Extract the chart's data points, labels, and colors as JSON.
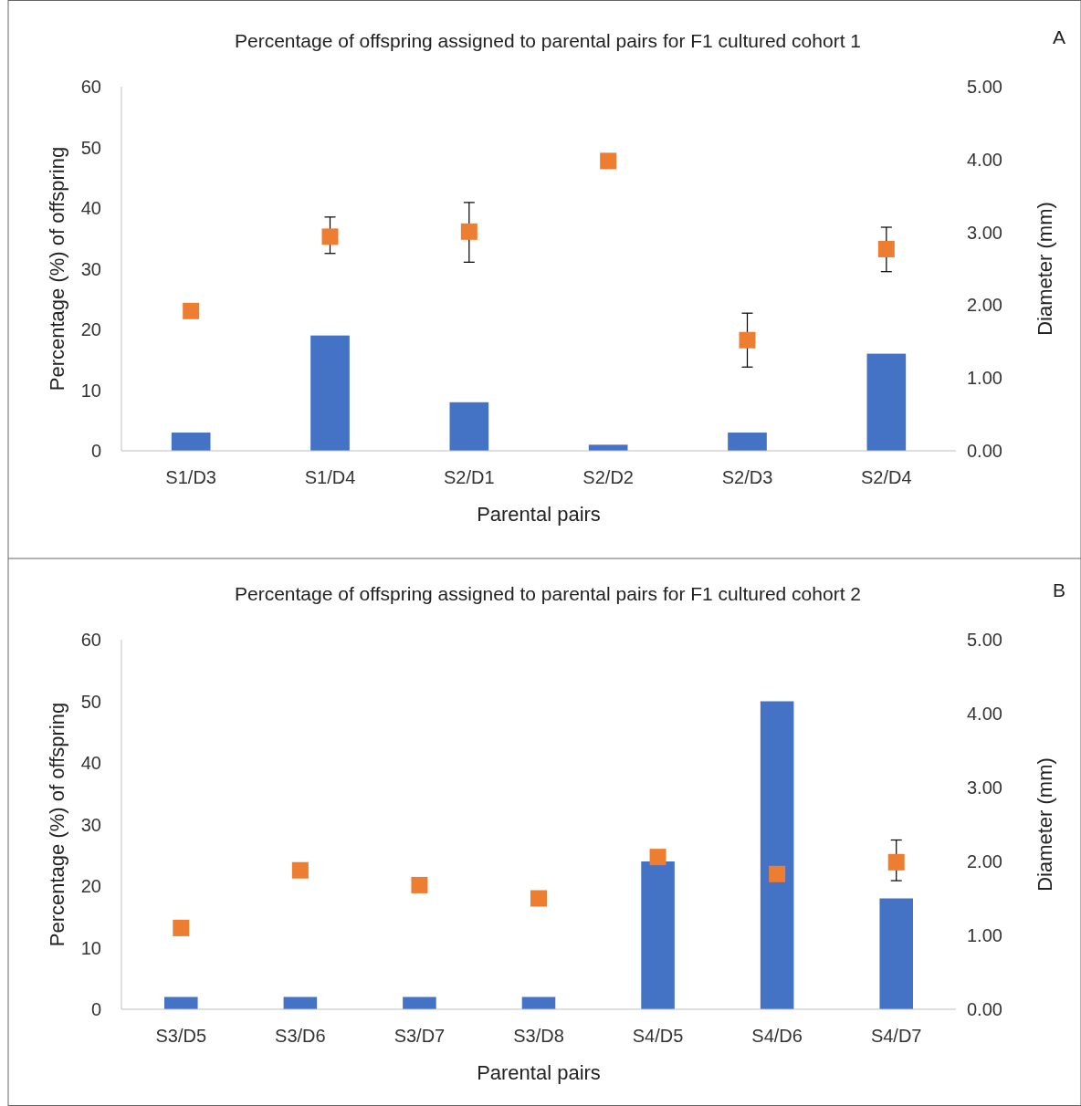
{
  "chart_data": [
    {
      "type": "bar",
      "title": "Percentage of offspring assigned to parental pairs for F1 cultured cohort 1",
      "xlabel": "Parental pairs",
      "ylabel": "Percentage (%) of offspring",
      "y2label": "Diameter (mm)",
      "annotations": [
        "A"
      ],
      "categories": [
        "S1/D3",
        "S1/D4",
        "S2/D1",
        "S2/D2",
        "S2/D3",
        "S2/D4"
      ],
      "series": [
        {
          "type": "bar",
          "color": "#4472c4",
          "values": [
            3,
            19,
            8,
            1,
            3,
            16
          ]
        },
        {
          "type": "scatter",
          "axis": "y2",
          "color": "#ed7d31",
          "marker": "square",
          "values": [
            1.92,
            2.94,
            3.01,
            3.98,
            1.52,
            2.77
          ],
          "errors": [
            null,
            [
              2.71,
              3.21
            ],
            [
              2.59,
              3.41
            ],
            null,
            [
              1.15,
              1.89
            ],
            [
              2.46,
              3.07
            ]
          ]
        }
      ],
      "ylim": [
        0,
        60
      ],
      "yticks": [
        0,
        10,
        20,
        30,
        40,
        50,
        60
      ],
      "y2lim": [
        0,
        5
      ],
      "y2ticks": [
        {
          "value": 0,
          "label": "0.00"
        },
        {
          "value": 1,
          "label": "1.00"
        },
        {
          "value": 2,
          "label": "2.00"
        },
        {
          "value": 3,
          "label": "3.00"
        },
        {
          "value": 4,
          "label": "4.00"
        },
        {
          "value": 5,
          "label": "5.00"
        }
      ],
      "grid": false
    },
    {
      "type": "bar",
      "title": "Percentage of offspring assigned to parental pairs for F1 cultured cohort 2",
      "xlabel": "Parental pairs",
      "ylabel": "Percentage (%) of offspring",
      "y2label": "Diameter (mm)",
      "annotations": [
        "B"
      ],
      "categories": [
        "S3/D5",
        "S3/D6",
        "S3/D7",
        "S3/D8",
        "S4/D5",
        "S4/D6",
        "S4/D7"
      ],
      "series": [
        {
          "type": "bar",
          "color": "#4472c4",
          "values": [
            2,
            2,
            2,
            2,
            24,
            50,
            18
          ]
        },
        {
          "type": "scatter",
          "axis": "y2",
          "color": "#ed7d31",
          "marker": "square",
          "values": [
            1.1,
            1.88,
            1.68,
            1.5,
            2.06,
            1.83,
            1.99
          ],
          "errors": [
            null,
            null,
            null,
            null,
            null,
            null,
            [
              1.74,
              2.29
            ]
          ]
        }
      ],
      "ylim": [
        0,
        60
      ],
      "yticks": [
        0,
        10,
        20,
        30,
        40,
        50,
        60
      ],
      "y2lim": [
        0,
        5
      ],
      "y2ticks": [
        {
          "value": 0,
          "label": "0.00"
        },
        {
          "value": 1,
          "label": "1.00"
        },
        {
          "value": 2,
          "label": "2.00"
        },
        {
          "value": 3,
          "label": "3.00"
        },
        {
          "value": 4,
          "label": "4.00"
        },
        {
          "value": 5,
          "label": "5.00"
        }
      ],
      "grid": false
    }
  ]
}
